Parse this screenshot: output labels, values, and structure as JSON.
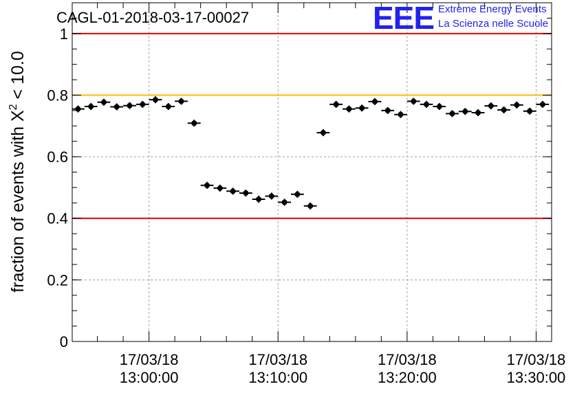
{
  "title": "CAGL-01-2018-03-17-00027",
  "logo": {
    "mark": "EEE",
    "line1": "Extreme Energy Events",
    "line2": "La Scienza nelle Scuole"
  },
  "chart_data": {
    "type": "scatter",
    "title": "CAGL-01-2018-03-17-00027",
    "ylabel": "fraction of events with χ² < 10.0",
    "ylabel_parts": {
      "prefix": "fraction of events with X",
      "sup": "2",
      "suffix": " < 10.0"
    },
    "xlabel": "",
    "ylim": [
      0,
      1.1
    ],
    "yticks": [
      {
        "value": 0,
        "label": "0"
      },
      {
        "value": 0.2,
        "label": "0.2"
      },
      {
        "value": 0.4,
        "label": "0.4"
      },
      {
        "value": 0.6,
        "label": "0.6"
      },
      {
        "value": 0.8,
        "label": "0.8"
      },
      {
        "value": 1,
        "label": "1"
      }
    ],
    "x_unit": "minutes after 13:00:00 on 17/03/18",
    "xlim": [
      -5.95,
      31.2
    ],
    "xticks": [
      {
        "value": 0,
        "date": "17/03/18",
        "time": "13:00:00"
      },
      {
        "value": 10,
        "date": "17/03/18",
        "time": "13:10:00"
      },
      {
        "value": 20,
        "date": "17/03/18",
        "time": "13:20:00"
      },
      {
        "value": 30,
        "date": "17/03/18",
        "time": "13:30:00"
      }
    ],
    "grid": true,
    "bin_width": 1,
    "reference_lines": [
      {
        "y": 1.0,
        "color": "#e00000"
      },
      {
        "y": 0.8,
        "color": "#ffbb00"
      },
      {
        "y": 0.4,
        "color": "#e00000"
      }
    ],
    "series": [
      {
        "color": "#000000",
        "x": [
          -5.5,
          -4.5,
          -3.5,
          -2.5,
          -1.5,
          -0.5,
          0.5,
          1.5,
          2.5,
          3.5,
          4.5,
          5.5,
          6.5,
          7.5,
          8.5,
          9.5,
          10.5,
          11.5,
          12.5,
          13.5,
          14.5,
          15.5,
          16.5,
          17.5,
          18.5,
          19.5,
          20.5,
          21.5,
          22.5,
          23.5,
          24.5,
          25.5,
          26.5,
          27.5,
          28.5,
          29.5,
          30.5
        ],
        "y": [
          0.755,
          0.763,
          0.777,
          0.762,
          0.766,
          0.77,
          0.785,
          0.763,
          0.78,
          0.709,
          0.507,
          0.498,
          0.488,
          0.482,
          0.462,
          0.472,
          0.452,
          0.478,
          0.44,
          0.678,
          0.77,
          0.755,
          0.758,
          0.779,
          0.75,
          0.737,
          0.78,
          0.77,
          0.763,
          0.74,
          0.747,
          0.743,
          0.765,
          0.752,
          0.768,
          0.748,
          0.77
        ]
      }
    ]
  }
}
